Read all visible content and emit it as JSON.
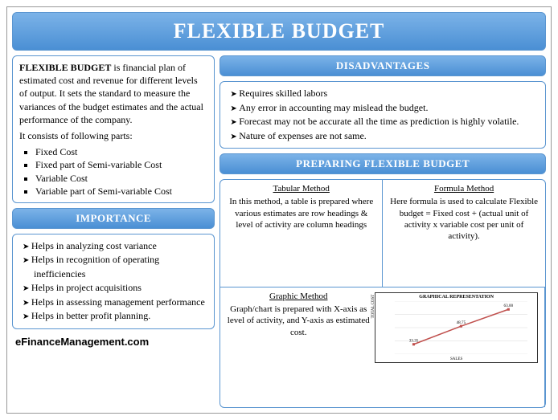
{
  "title": "FLEXIBLE BUDGET",
  "definition": {
    "lead": "FLEXIBLE BUDGET",
    "body": " is financial plan of estimated cost and revenue for different levels of output. It sets the standard to measure the variances of the budget estimates and the actual performance of the company.",
    "parts_intro": "It consists of following parts:",
    "parts": [
      "Fixed Cost",
      "Fixed part of Semi-variable Cost",
      "Variable Cost",
      "Variable part of Semi-variable Cost"
    ]
  },
  "importance": {
    "header": "IMPORTANCE",
    "items": [
      "Helps in analyzing cost variance",
      "Helps in recognition of operating inefficiencies",
      "Helps in project acquisitions",
      "Helps in assessing management performance",
      "Helps in better profit planning."
    ]
  },
  "disadvantages": {
    "header": "DISADVANTAGES",
    "items": [
      "Requires skilled labors",
      "Any error in accounting may mislead the budget.",
      "Forecast may not be accurate all the time as prediction is highly volatile.",
      "Nature of expenses are not same."
    ]
  },
  "preparing": {
    "header": "PREPARING FLEXIBLE BUDGET",
    "tabular": {
      "title": "Tabular Method",
      "text": "In this method, a table is prepared where various estimates are row headings & level of activity are column headings"
    },
    "formula": {
      "title": "Formula Method",
      "text": "Here formula is used to calculate Flexible budget = Fixed cost + (actual unit of activity x variable cost per unit of activity)."
    },
    "graphic": {
      "title": "Graphic Method",
      "text": "Graph/chart is prepared with X-axis as level of activity, and Y-axis as estimated cost.",
      "chart": {
        "type": "line",
        "chart_title": "GRAPHICAL REPRESENTATION",
        "x_label": "SALES",
        "y_label": "TOTAL COST",
        "x_values": [
          100,
          150,
          200
        ],
        "y_values": [
          33.35,
          48.75,
          63.0
        ],
        "xlim": [
          80,
          220
        ],
        "ylim": [
          25,
          70
        ],
        "line_color": "#c0504d",
        "marker_color": "#c0504d",
        "grid_color": "#d9d9d9",
        "background_color": "#ffffff",
        "line_width": 1.5,
        "marker_size": 3,
        "title_fontsize": 6,
        "axis_label_fontsize": 5
      }
    }
  },
  "footer": "eFinanceManagement.com",
  "colors": {
    "header_grad_top": "#7cb3e8",
    "header_grad_bottom": "#4a8fd4",
    "border": "#5a95d0"
  }
}
